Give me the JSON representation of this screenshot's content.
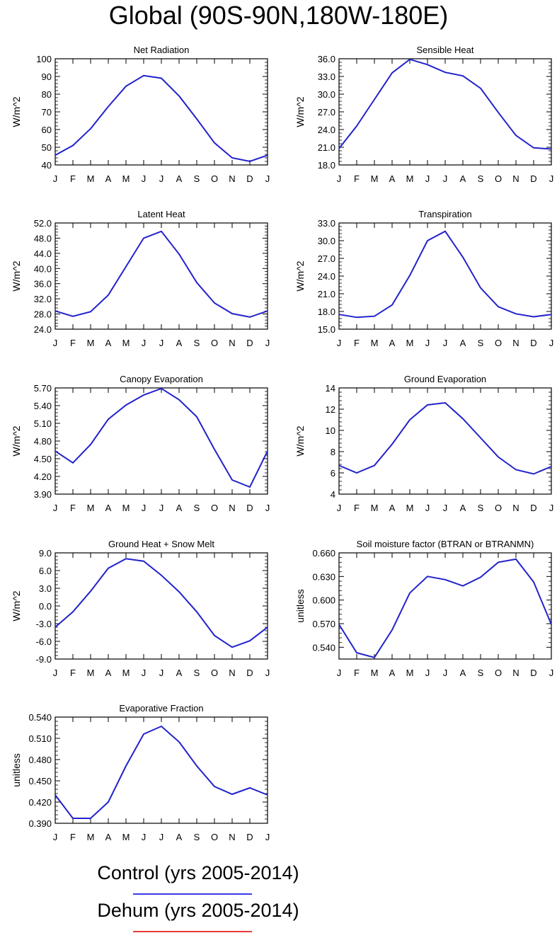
{
  "title": "Global (90S-90N,180W-180E)",
  "months": [
    "J",
    "F",
    "M",
    "A",
    "M",
    "J",
    "J",
    "A",
    "S",
    "O",
    "N",
    "D",
    "J"
  ],
  "chart_data": [
    {
      "type": "line",
      "title": "Net Radiation",
      "ylabel": "W/m^2",
      "ylim": [
        40,
        100
      ],
      "yticks": [
        "40",
        "50",
        "60",
        "70",
        "80",
        "90",
        "100"
      ],
      "series": [
        {
          "values": [
            45.5,
            51,
            60.5,
            73,
            84.5,
            90.5,
            89,
            79,
            66,
            52.5,
            44,
            42,
            45.5
          ]
        }
      ]
    },
    {
      "type": "line",
      "title": "Sensible Heat",
      "ylabel": "W/m^2",
      "ylim": [
        18,
        36
      ],
      "yticks": [
        "18.0",
        "21.0",
        "24.0",
        "27.0",
        "30.0",
        "33.0",
        "36.0"
      ],
      "series": [
        {
          "values": [
            20.8,
            24.6,
            29.1,
            33.6,
            35.9,
            35,
            33.7,
            33.1,
            31,
            26.9,
            23,
            20.9,
            20.7
          ]
        }
      ]
    },
    {
      "type": "line",
      "title": "Latent Heat",
      "ylabel": "W/m^2",
      "ylim": [
        24,
        52
      ],
      "yticks": [
        "24.0",
        "28.0",
        "32.0",
        "36.0",
        "40.0",
        "44.0",
        "48.0",
        "52.0"
      ],
      "series": [
        {
          "values": [
            28.8,
            27.4,
            28.6,
            33,
            40.5,
            48,
            49.8,
            43.8,
            36.3,
            30.9,
            28.1,
            27.2,
            28.8
          ]
        }
      ]
    },
    {
      "type": "line",
      "title": "Transpiration",
      "ylabel": "W/m^2",
      "ylim": [
        15,
        33
      ],
      "yticks": [
        "15.0",
        "18.0",
        "21.0",
        "24.0",
        "27.0",
        "30.0",
        "33.0"
      ],
      "series": [
        {
          "values": [
            17.5,
            17,
            17.2,
            19.1,
            24.1,
            30,
            31.6,
            27.2,
            22,
            18.8,
            17.6,
            17.1,
            17.5
          ]
        }
      ]
    },
    {
      "type": "line",
      "title": "Canopy Evaporation",
      "ylabel": "W/m^2",
      "ylim": [
        3.9,
        5.7
      ],
      "yticks": [
        "3.90",
        "4.20",
        "4.50",
        "4.80",
        "5.10",
        "5.40",
        "5.70"
      ],
      "series": [
        {
          "values": [
            4.63,
            4.43,
            4.74,
            5.17,
            5.41,
            5.58,
            5.69,
            5.5,
            5.21,
            4.66,
            4.14,
            4.02,
            4.63
          ]
        }
      ]
    },
    {
      "type": "line",
      "title": "Ground Evaporation",
      "ylabel": "W/m^2",
      "ylim": [
        4,
        14
      ],
      "yticks": [
        "4",
        "6",
        "8",
        "10",
        "12",
        "14"
      ],
      "series": [
        {
          "values": [
            6.7,
            6,
            6.7,
            8.7,
            11,
            12.4,
            12.6,
            11.1,
            9.3,
            7.5,
            6.3,
            5.9,
            6.6
          ]
        }
      ]
    },
    {
      "type": "line",
      "title": "Ground Heat + Snow Melt",
      "ylabel": "W/m^2",
      "ylim": [
        -9,
        9
      ],
      "yticks": [
        "-9.0",
        "-6.0",
        "-3.0",
        "0.0",
        "3.0",
        "6.0",
        "9.0"
      ],
      "series": [
        {
          "values": [
            -3.6,
            -1,
            2.5,
            6.4,
            8,
            7.6,
            5.2,
            2.4,
            -1,
            -5,
            -7,
            -5.9,
            -3.6
          ]
        }
      ]
    },
    {
      "type": "line",
      "title": "Soil moisture factor (BTRAN or BTRANMN)",
      "ylabel": "unitless",
      "ylim": [
        0.525,
        0.66
      ],
      "yticks": [
        "0.540",
        "0.570",
        "0.600",
        "0.630",
        "0.660"
      ],
      "series": [
        {
          "values": [
            0.569,
            0.533,
            0.527,
            0.562,
            0.609,
            0.63,
            0.626,
            0.618,
            0.629,
            0.648,
            0.652,
            0.623,
            0.569
          ]
        }
      ]
    },
    {
      "type": "line",
      "title": "Evaporative Fraction",
      "ylabel": "unitless",
      "ylim": [
        0.39,
        0.54
      ],
      "yticks": [
        "0.390",
        "0.420",
        "0.450",
        "0.480",
        "0.510",
        "0.540"
      ],
      "series": [
        {
          "values": [
            0.43,
            0.397,
            0.397,
            0.42,
            0.471,
            0.516,
            0.527,
            0.505,
            0.471,
            0.442,
            0.431,
            0.44,
            0.43
          ]
        }
      ]
    }
  ],
  "legend": [
    {
      "label": "Control (yrs 2005-2014)",
      "color": "#3a3ae8"
    },
    {
      "label": "Dehum (yrs 2005-2014)",
      "color": "#e83a3a"
    }
  ],
  "line_color": "#2222cc"
}
